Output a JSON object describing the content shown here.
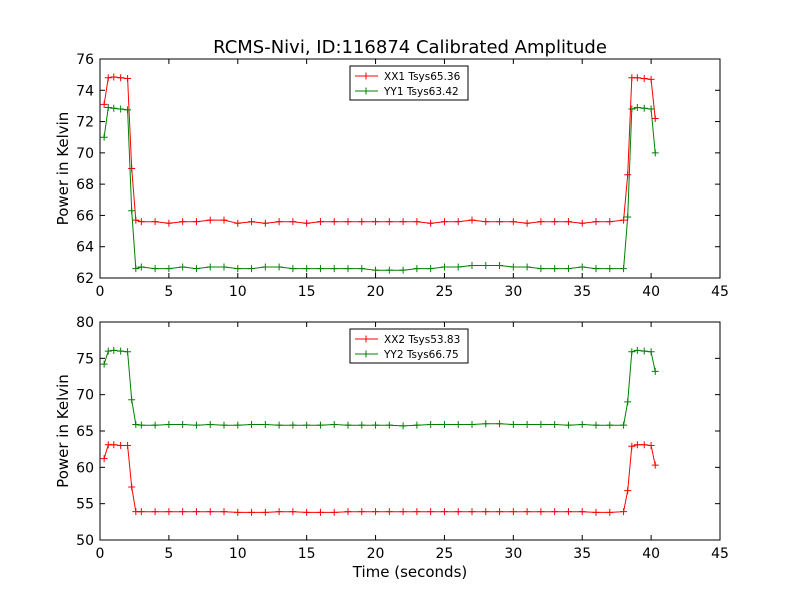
{
  "figure": {
    "title": "RCMS-Nivi, ID:116874 Calibrated Amplitude",
    "xlabel": "Time (seconds)"
  },
  "colors": {
    "red": "#ff0000",
    "green": "#008000",
    "axes": "#000000",
    "background": "#ffffff"
  },
  "chart_data": [
    {
      "type": "line",
      "marker": "+",
      "title": "RCMS-Nivi, ID:116874 Calibrated Amplitude",
      "xlabel": "",
      "ylabel": "Power in Kelvin",
      "xlim": [
        0,
        45
      ],
      "ylim": [
        62,
        76
      ],
      "xticks": [
        "0",
        "5",
        "10",
        "15",
        "20",
        "25",
        "30",
        "35",
        "40",
        "45"
      ],
      "yticks": [
        "62",
        "64",
        "66",
        "68",
        "70",
        "72",
        "74",
        "76"
      ],
      "grid": false,
      "legend_position": "top-center",
      "series": [
        {
          "name": "XX1 Tsys65.36",
          "color": "#ff0000",
          "x": [
            0.3,
            0.6,
            1.0,
            1.5,
            2.0,
            2.3,
            2.6,
            3.0,
            4.0,
            5.0,
            6.0,
            7.0,
            8.0,
            9.0,
            10.0,
            11.0,
            12.0,
            13.0,
            14.0,
            15.0,
            16.0,
            17.0,
            18.0,
            19.0,
            20.0,
            21.0,
            22.0,
            23.0,
            24.0,
            25.0,
            26.0,
            27.0,
            28.0,
            29.0,
            30.0,
            31.0,
            32.0,
            33.0,
            34.0,
            35.0,
            36.0,
            37.0,
            38.0,
            38.3,
            38.6,
            39.0,
            39.5,
            40.0,
            40.3
          ],
          "values": [
            73.1,
            74.8,
            74.85,
            74.8,
            74.75,
            69.0,
            65.7,
            65.6,
            65.6,
            65.5,
            65.6,
            65.6,
            65.7,
            65.7,
            65.5,
            65.6,
            65.5,
            65.6,
            65.6,
            65.5,
            65.6,
            65.6,
            65.6,
            65.6,
            65.6,
            65.6,
            65.6,
            65.6,
            65.5,
            65.6,
            65.6,
            65.7,
            65.6,
            65.6,
            65.6,
            65.5,
            65.6,
            65.6,
            65.6,
            65.5,
            65.6,
            65.6,
            65.7,
            68.6,
            74.8,
            74.8,
            74.75,
            74.7,
            72.2
          ]
        },
        {
          "name": "YY1 Tsys63.42",
          "color": "#008000",
          "x": [
            0.3,
            0.6,
            1.0,
            1.5,
            2.0,
            2.3,
            2.6,
            3.0,
            4.0,
            5.0,
            6.0,
            7.0,
            8.0,
            9.0,
            10.0,
            11.0,
            12.0,
            13.0,
            14.0,
            15.0,
            16.0,
            17.0,
            18.0,
            19.0,
            20.0,
            21.0,
            22.0,
            23.0,
            24.0,
            25.0,
            26.0,
            27.0,
            28.0,
            29.0,
            30.0,
            31.0,
            32.0,
            33.0,
            34.0,
            35.0,
            36.0,
            37.0,
            38.0,
            38.3,
            38.6,
            39.0,
            39.5,
            40.0,
            40.3
          ],
          "values": [
            71.0,
            72.9,
            72.85,
            72.8,
            72.75,
            66.3,
            62.6,
            62.7,
            62.6,
            62.6,
            62.7,
            62.6,
            62.7,
            62.7,
            62.6,
            62.6,
            62.7,
            62.7,
            62.6,
            62.6,
            62.6,
            62.6,
            62.6,
            62.6,
            62.5,
            62.5,
            62.5,
            62.6,
            62.6,
            62.7,
            62.7,
            62.8,
            62.8,
            62.8,
            62.7,
            62.7,
            62.6,
            62.6,
            62.6,
            62.7,
            62.6,
            62.6,
            62.6,
            65.9,
            72.8,
            72.9,
            72.85,
            72.8,
            70.0
          ]
        }
      ]
    },
    {
      "type": "line",
      "marker": "+",
      "title": "",
      "xlabel": "Time (seconds)",
      "ylabel": "Power in Kelvin",
      "xlim": [
        0,
        45
      ],
      "ylim": [
        50,
        80
      ],
      "xticks": [
        "0",
        "5",
        "10",
        "15",
        "20",
        "25",
        "30",
        "35",
        "40",
        "45"
      ],
      "yticks": [
        "50",
        "55",
        "60",
        "65",
        "70",
        "75",
        "80"
      ],
      "grid": false,
      "legend_position": "top-center",
      "series": [
        {
          "name": "XX2 Tsys53.83",
          "color": "#ff0000",
          "x": [
            0.3,
            0.6,
            1.0,
            1.5,
            2.0,
            2.3,
            2.6,
            3.0,
            4.0,
            5.0,
            6.0,
            7.0,
            8.0,
            9.0,
            10.0,
            11.0,
            12.0,
            13.0,
            14.0,
            15.0,
            16.0,
            17.0,
            18.0,
            19.0,
            20.0,
            21.0,
            22.0,
            23.0,
            24.0,
            25.0,
            26.0,
            27.0,
            28.0,
            29.0,
            30.0,
            31.0,
            32.0,
            33.0,
            34.0,
            35.0,
            36.0,
            37.0,
            38.0,
            38.3,
            38.6,
            39.0,
            39.5,
            40.0,
            40.3
          ],
          "values": [
            61.2,
            63.1,
            63.1,
            63.0,
            63.0,
            57.3,
            53.9,
            53.9,
            53.9,
            53.9,
            53.9,
            53.9,
            53.9,
            53.9,
            53.8,
            53.8,
            53.8,
            53.9,
            53.9,
            53.8,
            53.8,
            53.8,
            53.9,
            53.9,
            53.9,
            53.9,
            53.9,
            53.9,
            53.9,
            53.9,
            53.9,
            53.9,
            53.9,
            53.9,
            53.9,
            53.9,
            53.9,
            53.9,
            53.9,
            53.9,
            53.8,
            53.8,
            53.9,
            56.8,
            62.9,
            63.1,
            63.1,
            63.0,
            60.3
          ]
        },
        {
          "name": "YY2 Tsys66.75",
          "color": "#008000",
          "x": [
            0.3,
            0.6,
            1.0,
            1.5,
            2.0,
            2.3,
            2.6,
            3.0,
            4.0,
            5.0,
            6.0,
            7.0,
            8.0,
            9.0,
            10.0,
            11.0,
            12.0,
            13.0,
            14.0,
            15.0,
            16.0,
            17.0,
            18.0,
            19.0,
            20.0,
            21.0,
            22.0,
            23.0,
            24.0,
            25.0,
            26.0,
            27.0,
            28.0,
            29.0,
            30.0,
            31.0,
            32.0,
            33.0,
            34.0,
            35.0,
            36.0,
            37.0,
            38.0,
            38.3,
            38.6,
            39.0,
            39.5,
            40.0,
            40.3
          ],
          "values": [
            74.2,
            76.0,
            76.1,
            76.0,
            75.9,
            69.3,
            65.9,
            65.8,
            65.8,
            65.9,
            65.9,
            65.8,
            65.9,
            65.8,
            65.8,
            65.9,
            65.9,
            65.8,
            65.8,
            65.8,
            65.8,
            65.9,
            65.8,
            65.8,
            65.8,
            65.8,
            65.7,
            65.8,
            65.9,
            65.9,
            65.9,
            65.9,
            66.0,
            66.0,
            65.9,
            65.9,
            65.9,
            65.9,
            65.8,
            65.9,
            65.8,
            65.8,
            65.8,
            69.0,
            75.9,
            76.1,
            76.0,
            75.9,
            73.2
          ]
        }
      ]
    }
  ]
}
